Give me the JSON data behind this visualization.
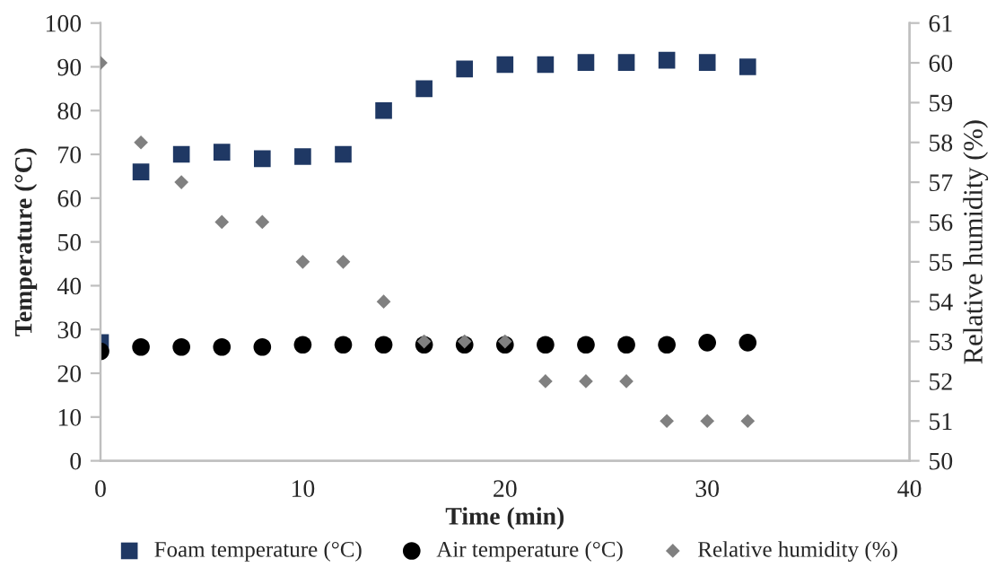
{
  "chart_data": {
    "type": "scatter",
    "xlabel": "Time (min)",
    "ylabel": "Temperature (°C)",
    "y2label": "Relative humidity (%)",
    "x": [
      0,
      2,
      4,
      6,
      8,
      10,
      12,
      14,
      16,
      18,
      20,
      22,
      24,
      26,
      28,
      30,
      32
    ],
    "series": [
      {
        "name": "Foam temperature (°C)",
        "color": "#1f3864",
        "marker": "square",
        "values": [
          27,
          66,
          70,
          70.5,
          69,
          69.5,
          70,
          80,
          85,
          89.5,
          90.5,
          90.5,
          91,
          91,
          91.5,
          91,
          90
        ]
      },
      {
        "name": "Air temperature (°C)",
        "color": "#000000",
        "marker": "circle",
        "values": [
          25,
          26,
          26,
          26,
          26,
          26.5,
          26.5,
          26.5,
          26.5,
          26.5,
          26.5,
          26.5,
          26.5,
          26.5,
          26.5,
          27,
          27
        ]
      },
      {
        "name": "Relative humidity (%)",
        "color": "#808080",
        "marker": "diamond",
        "axis": "y2",
        "values": [
          60,
          58,
          57,
          56,
          56,
          55,
          55,
          54,
          53,
          53,
          53,
          52,
          52,
          52,
          51,
          51,
          51
        ]
      }
    ],
    "xlim": [
      0,
      40
    ],
    "xticks": [
      0,
      10,
      20,
      30,
      40
    ],
    "ylim": [
      0,
      100
    ],
    "yticks": [
      0,
      10,
      20,
      30,
      40,
      50,
      60,
      70,
      80,
      90,
      100
    ],
    "y2lim": [
      50,
      61
    ],
    "y2ticks": [
      50,
      51,
      52,
      53,
      54,
      55,
      56,
      57,
      58,
      59,
      60,
      61
    ],
    "grid": false,
    "legend": "bottom"
  }
}
